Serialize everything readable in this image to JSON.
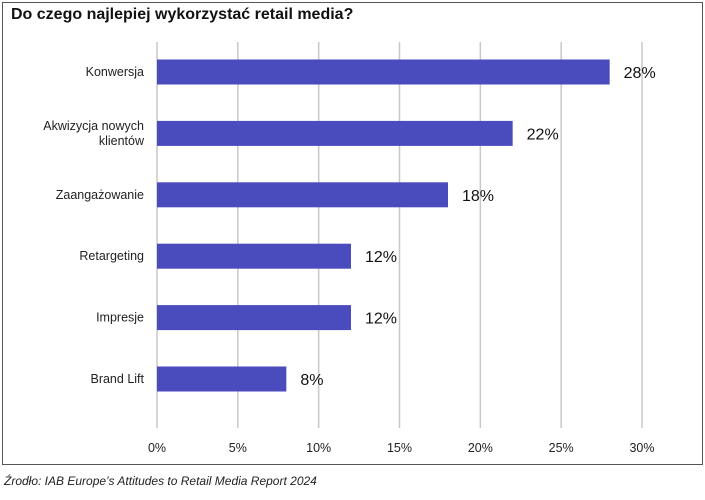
{
  "chart_data": {
    "type": "bar",
    "orientation": "horizontal",
    "title": "Do czego najlepiej wykorzystać retail media?",
    "categories": [
      [
        "Konwersja"
      ],
      [
        "Akwizycja nowych",
        "klientów"
      ],
      [
        "Zaangażowanie"
      ],
      [
        "Retargeting"
      ],
      [
        "Impresje"
      ],
      [
        "Brand Lift"
      ]
    ],
    "values": [
      28,
      22,
      18,
      12,
      12,
      8
    ],
    "value_labels": [
      "28%",
      "22%",
      "18%",
      "12%",
      "12%",
      "8%"
    ],
    "xlim": [
      0,
      30
    ],
    "xticks": [
      0,
      5,
      10,
      15,
      20,
      25,
      30
    ],
    "xtick_labels": [
      "0%",
      "5%",
      "10%",
      "15%",
      "20%",
      "25%",
      "30%"
    ],
    "grid": "vertical",
    "bar_color": "#4a4bbd",
    "grid_color": "#c8c8c8",
    "xlabel": "",
    "ylabel": ""
  },
  "source": "Źrodło: IAB Europe’s Attitudes to Retail Media Report 2024"
}
